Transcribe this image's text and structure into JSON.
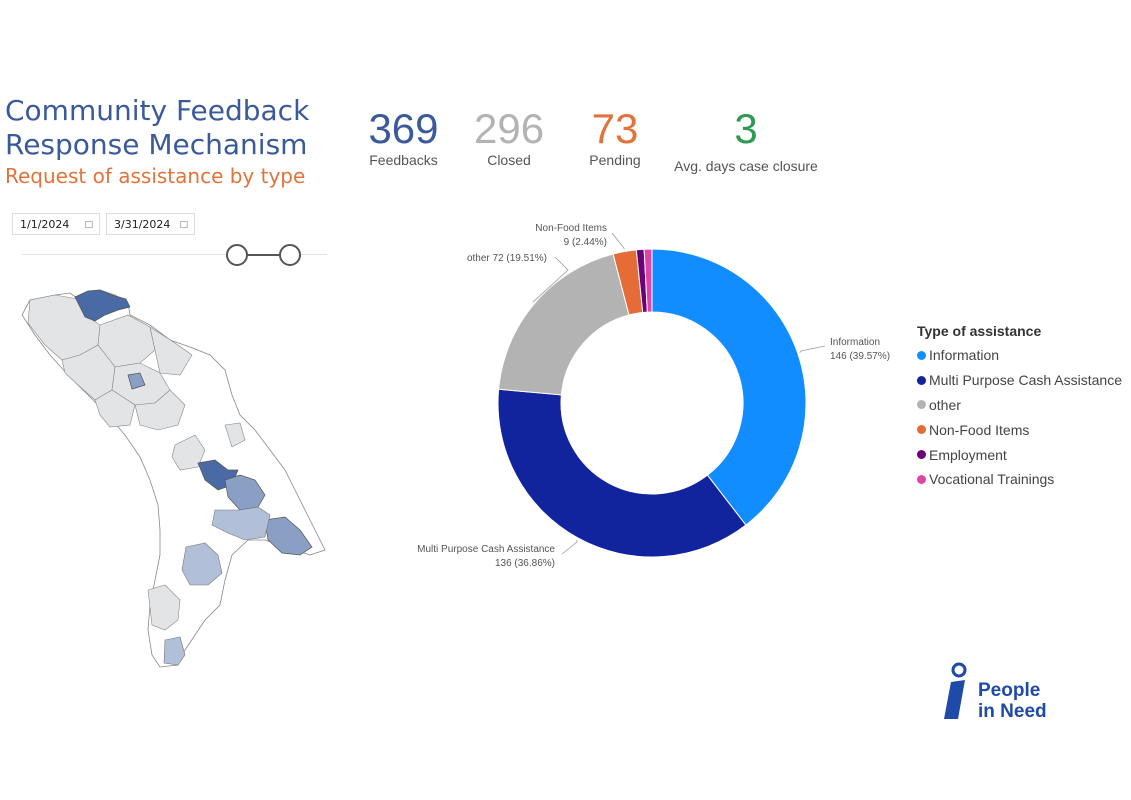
{
  "header": {
    "title_line1": "Community Feedback",
    "title_line2": "Response Mechanism",
    "subtitle": "Request of assistance by type"
  },
  "kpis": [
    {
      "value": "369",
      "label": "Feedbacks",
      "color": "#3a5a9c"
    },
    {
      "value": "296",
      "label": "Closed",
      "color": "#b3b3b3"
    },
    {
      "value": "73",
      "label": "Pending",
      "color": "#e2733b"
    },
    {
      "value": "3",
      "label": "Avg. days case closure",
      "color": "#2e9a52"
    }
  ],
  "filters": {
    "start_date": "1/1/2024",
    "end_date": "3/31/2024",
    "calendar_icon": "calendar-icon",
    "slider_color": "#555555"
  },
  "map": {
    "region_colors": {
      "high": "#4a6aa5",
      "medium": "#8a9fc4",
      "low": "#b1c0d8",
      "none": "#e3e4e6",
      "outline": "#888888"
    }
  },
  "chart_data": {
    "type": "pie",
    "donut": true,
    "legend_title": "Type of assistance",
    "legend_position": "right",
    "slices": [
      {
        "name": "Information",
        "value": 146,
        "percent": "39.57%",
        "color": "#118dff",
        "label_line1": "Information",
        "label_line2": "146 (39.57%)"
      },
      {
        "name": "Multi Purpose Cash Assistance",
        "value": 136,
        "percent": "36.86%",
        "color": "#12239e",
        "label_line1": "Multi Purpose Cash Assistance",
        "label_line2": "136 (36.86%)"
      },
      {
        "name": "other",
        "value": 72,
        "percent": "19.51%",
        "color": "#b3b3b3",
        "label_line1": "other 72 (19.51%)",
        "label_line2": ""
      },
      {
        "name": "Non-Food Items",
        "value": 9,
        "percent": "2.44%",
        "color": "#e66c37",
        "label_line1": "Non-Food Items",
        "label_line2": "9 (2.44%)"
      },
      {
        "name": "Employment",
        "value": 3,
        "percent": "",
        "color": "#6b007b",
        "label_line1": "",
        "label_line2": ""
      },
      {
        "name": "Vocational Trainings",
        "value": 3,
        "percent": "",
        "color": "#e044a7",
        "label_line1": "",
        "label_line2": ""
      }
    ]
  },
  "logo": {
    "line1": "People",
    "line2": "in Need",
    "color": "#1f4aa8"
  }
}
